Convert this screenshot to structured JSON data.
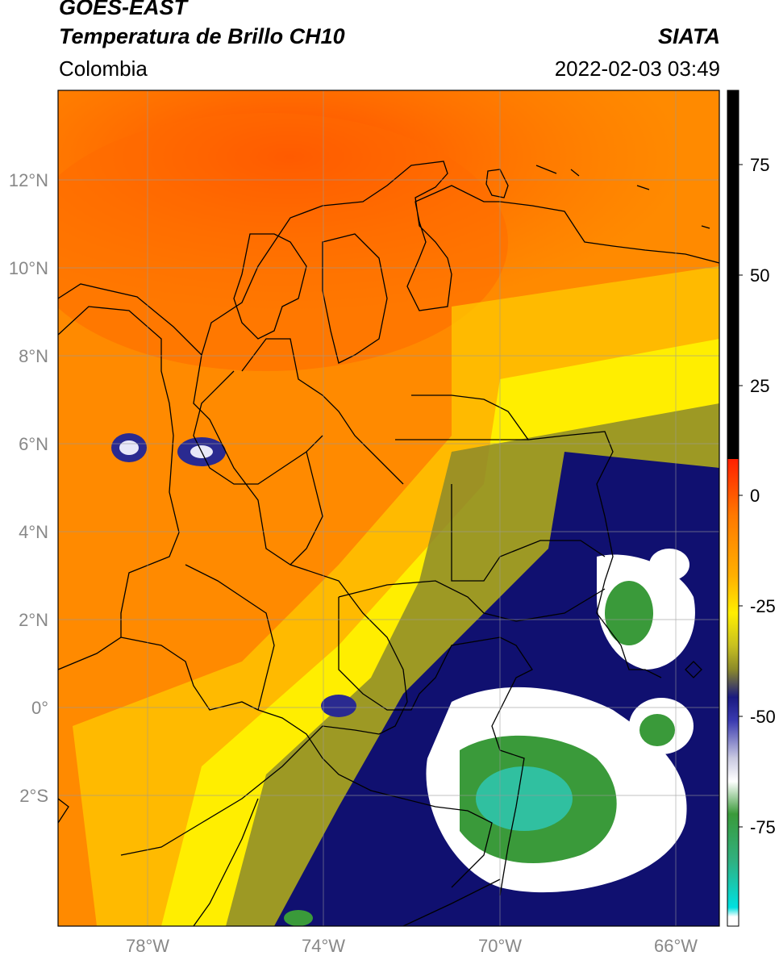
{
  "header": {
    "satellite": "GOES-EAST",
    "product": "Temperatura de Brillo CH10",
    "region": "Colombia",
    "source": "SIATA",
    "datetime": "2022-02-03 03:49"
  },
  "map": {
    "lat_ticks": [
      "12°N",
      "10°N",
      "8°N",
      "6°N",
      "4°N",
      "2°N",
      "0°",
      "2°S"
    ],
    "lon_ticks": [
      "78°W",
      "74°W",
      "70°W",
      "66°W"
    ],
    "lon_range": [
      -80,
      -65
    ],
    "lat_range": [
      -5,
      14
    ]
  },
  "colorbar": {
    "ticks": [
      "75",
      "50",
      "25",
      "0",
      "-25",
      "-50",
      "-75"
    ],
    "colors": {
      "black": "#000000",
      "red": "#ff2000",
      "orange": "#ff8a00",
      "yellow": "#ffee00",
      "olive": "#8c8a2a",
      "navy": "#101070",
      "white": "#ffffff",
      "green": "#3a9a3a",
      "teal": "#30d0b0",
      "cyan": "#00e0e0"
    }
  }
}
